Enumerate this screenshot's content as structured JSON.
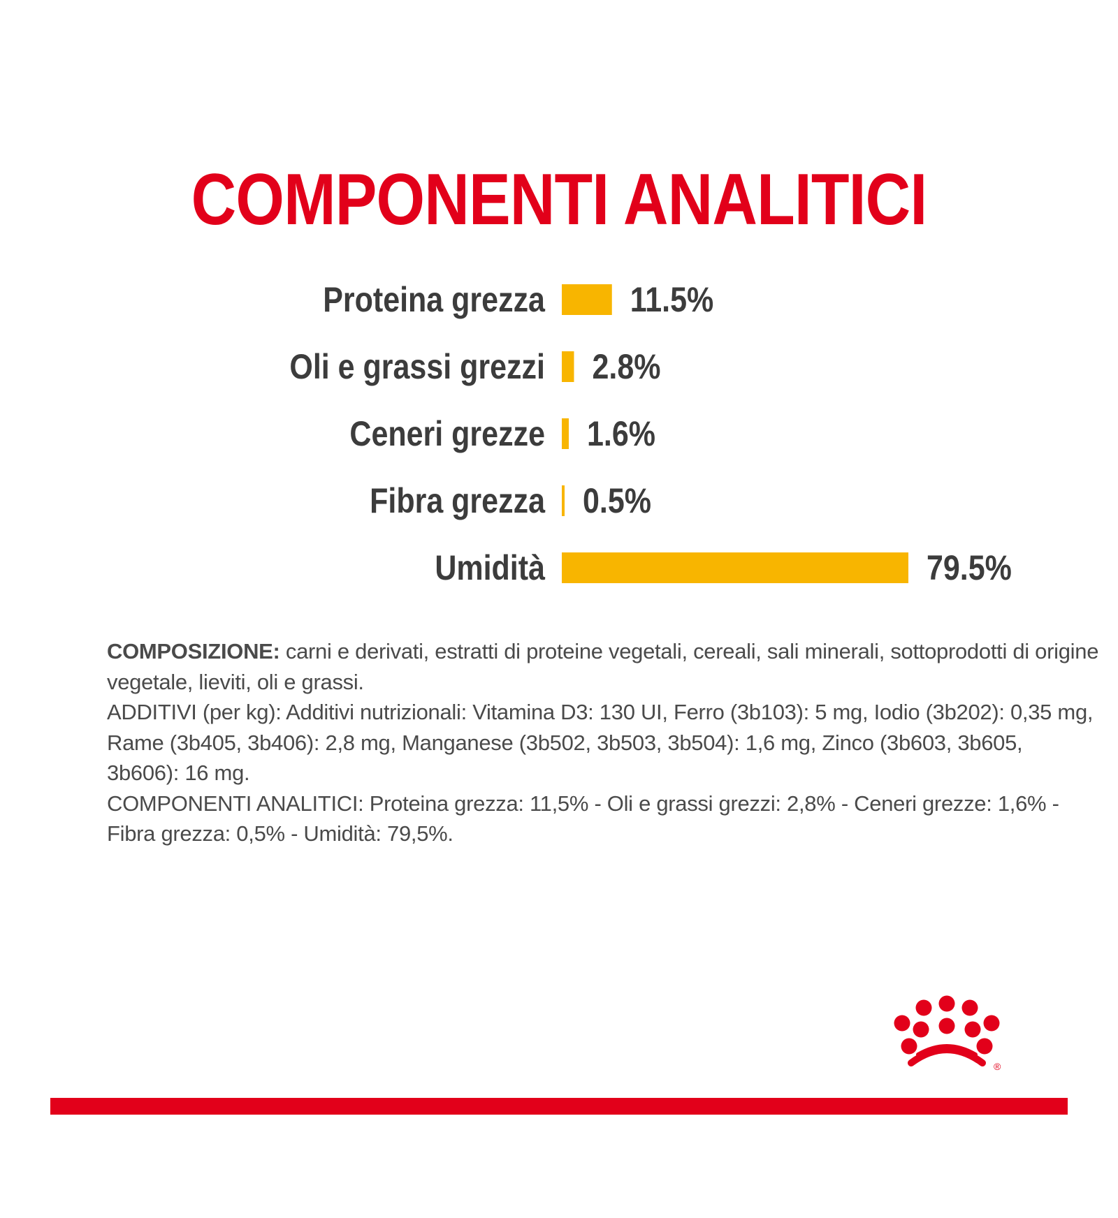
{
  "colors": {
    "brand_red": "#e2001a",
    "bar_yellow": "#f8b500",
    "text_dark": "#3c3c3c",
    "text_body": "#4a4a4a",
    "background": "#ffffff"
  },
  "title": "COMPONENTI ANALITICI",
  "chart_data": {
    "type": "bar",
    "orientation": "horizontal",
    "title": "COMPONENTI ANALITICI",
    "xlabel": "",
    "ylabel": "",
    "categories": [
      "Proteina grezza",
      "Oli e grassi grezzi",
      "Ceneri grezze",
      "Fibra grezza",
      "Umidità"
    ],
    "values": [
      11.5,
      2.8,
      1.6,
      0.5,
      79.5
    ],
    "value_labels": [
      "11.5%",
      "2.8%",
      "1.6%",
      "0.5%",
      "79.5%"
    ],
    "unit": "%",
    "xlim": [
      0,
      79.5
    ],
    "grid": false,
    "legend": "none"
  },
  "composition": {
    "label": "COMPOSIZIONE:",
    "text": " carni e derivati, estratti di proteine vegetali, cereali, sali minerali, sottoprodotti di origine vegetale, lieviti, oli e grassi.",
    "additives": "ADDITIVI (per kg): Additivi nutrizionali: Vitamina D3: 130 UI, Ferro (3b103): 5 mg, Iodio (3b202): 0,35 mg, Rame (3b405, 3b406): 2,8 mg, Manganese (3b502, 3b503, 3b504): 1,6 mg, Zinco (3b603, 3b605, 3b606): 16 mg.",
    "analytical": "COMPONENTI ANALITICI: Proteina grezza: 11,5% - Oli e grassi grezzi: 2,8% - Ceneri grezze: 1,6% - Fibra grezza: 0,5% - Umidità: 79,5%."
  },
  "logo": {
    "icon": "royal-canin-crown-icon",
    "registered_mark": "®"
  }
}
